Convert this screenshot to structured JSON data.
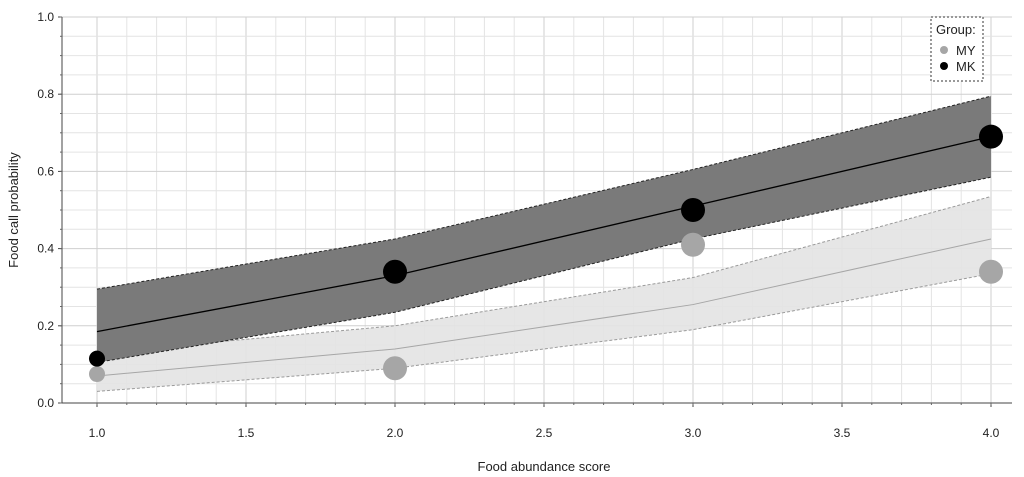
{
  "chart_data": {
    "type": "line",
    "title": "",
    "xlabel": "Food abundance score",
    "ylabel": "Food call probability",
    "xlim": [
      1.0,
      4.0
    ],
    "ylim": [
      0.0,
      1.0
    ],
    "x_ticks": [
      "1.0",
      "1.5",
      "2.0",
      "2.5",
      "3.0",
      "3.5",
      "4.0"
    ],
    "y_ticks": [
      "0.0",
      "0.2",
      "0.4",
      "0.6",
      "0.8",
      "1.0"
    ],
    "grid": true,
    "legend": {
      "title": "Group:",
      "placement": "top-right"
    },
    "series": [
      {
        "name": "MY",
        "color": "#a6a6a6",
        "band_color": "#e3e3e3",
        "x": [
          1.0,
          2.0,
          3.0,
          4.0
        ],
        "fit": [
          0.07,
          0.14,
          0.255,
          0.425
        ],
        "lower": [
          0.03,
          0.09,
          0.19,
          0.335
        ],
        "upper": [
          0.13,
          0.2,
          0.325,
          0.535
        ],
        "points": [
          {
            "x": 1.0,
            "y": 0.075,
            "size": "small"
          },
          {
            "x": 2.0,
            "y": 0.09,
            "size": "large"
          },
          {
            "x": 3.0,
            "y": 0.41,
            "size": "large"
          },
          {
            "x": 4.0,
            "y": 0.34,
            "size": "large"
          }
        ]
      },
      {
        "name": "MK",
        "color": "#000000",
        "band_color": "#7a7a7a",
        "x": [
          1.0,
          2.0,
          3.0,
          4.0
        ],
        "fit": [
          0.185,
          0.33,
          0.51,
          0.69
        ],
        "lower": [
          0.105,
          0.235,
          0.425,
          0.585
        ],
        "upper": [
          0.295,
          0.425,
          0.605,
          0.795
        ],
        "points": [
          {
            "x": 1.0,
            "y": 0.115,
            "size": "small"
          },
          {
            "x": 2.0,
            "y": 0.34,
            "size": "large"
          },
          {
            "x": 3.0,
            "y": 0.5,
            "size": "large"
          },
          {
            "x": 4.0,
            "y": 0.69,
            "size": "large"
          }
        ]
      }
    ]
  }
}
